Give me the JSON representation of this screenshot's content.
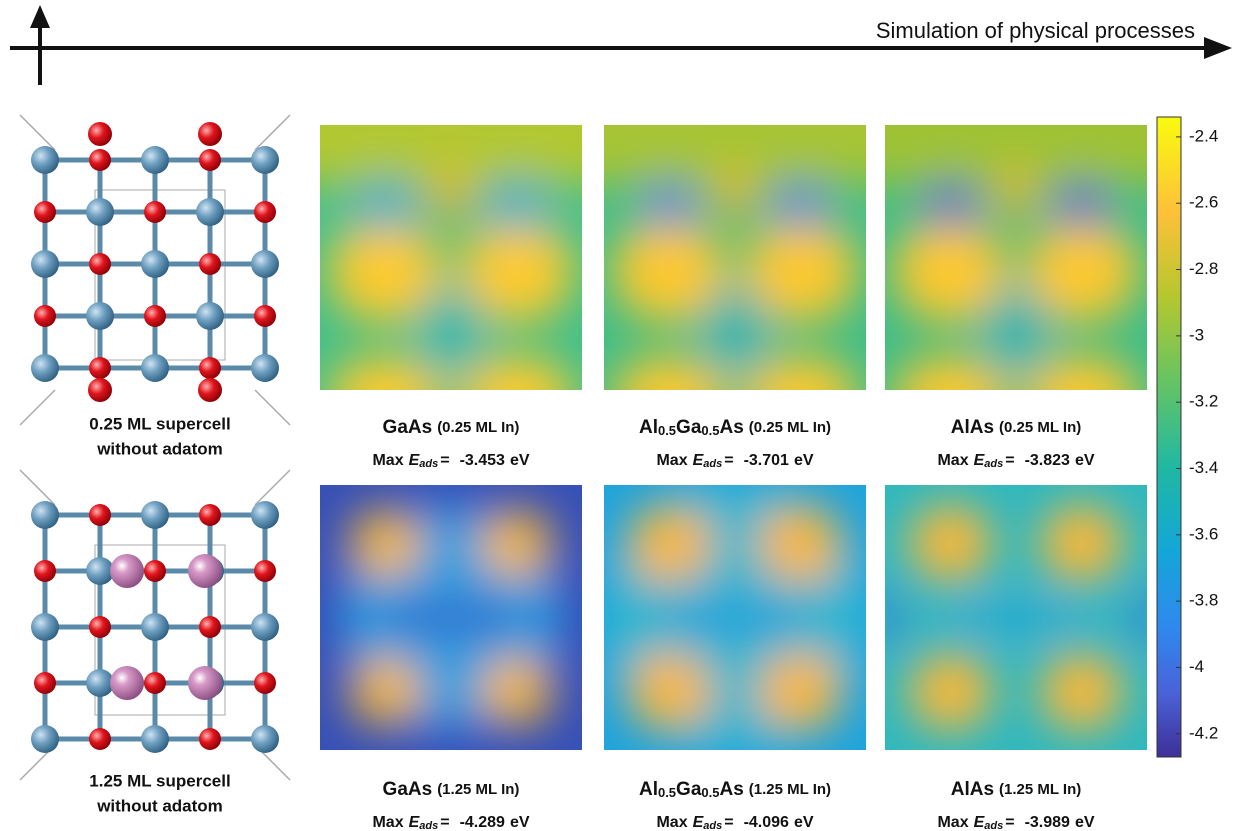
{
  "header": {
    "axis_label": "Simulation of physical processes"
  },
  "rows": [
    {
      "structure": {
        "line1": "0.25 ML supercell",
        "line2": "without adatom"
      },
      "panels": [
        {
          "material": [
            {
              "text": "GaAs"
            }
          ],
          "coverage": "(0.25 ML In)",
          "max": "Max",
          "symbol": "E",
          "subscript": "ads",
          "equals": "=",
          "value": -3.453,
          "unit": "eV"
        },
        {
          "material": [
            {
              "text": "Al"
            },
            {
              "text": "0.5",
              "sub": true
            },
            {
              "text": "Ga"
            },
            {
              "text": "0.5",
              "sub": true
            },
            {
              "text": "As"
            }
          ],
          "coverage": "(0.25 ML In)",
          "max": "Max",
          "symbol": "E",
          "subscript": "ads",
          "equals": "=",
          "value": -3.701,
          "unit": "eV"
        },
        {
          "material": [
            {
              "text": "AlAs"
            }
          ],
          "coverage": "(0.25 ML In)",
          "max": "Max",
          "symbol": "E",
          "subscript": "ads",
          "equals": "=",
          "value": -3.823,
          "unit": "eV"
        }
      ]
    },
    {
      "structure": {
        "line1": "1.25 ML supercell",
        "line2": "without adatom"
      },
      "panels": [
        {
          "material": [
            {
              "text": "GaAs"
            }
          ],
          "coverage": "(1.25 ML In)",
          "max": "Max",
          "symbol": "E",
          "subscript": "ads",
          "equals": "=",
          "value": -4.289,
          "unit": "eV"
        },
        {
          "material": [
            {
              "text": "Al"
            },
            {
              "text": "0.5",
              "sub": true
            },
            {
              "text": "Ga"
            },
            {
              "text": "0.5",
              "sub": true
            },
            {
              "text": "As"
            }
          ],
          "coverage": "(1.25 ML In)",
          "max": "Max",
          "symbol": "E",
          "subscript": "ads",
          "equals": "=",
          "value": -4.096,
          "unit": "eV"
        },
        {
          "material": [
            {
              "text": "AlAs"
            }
          ],
          "coverage": "(1.25 ML In)",
          "max": "Max",
          "symbol": "E",
          "subscript": "ads",
          "equals": "=",
          "value": -3.989,
          "unit": "eV"
        }
      ]
    }
  ],
  "colorbar": {
    "lim": [
      -4.27,
      -2.34
    ],
    "ticks": [
      -2.4,
      -2.6,
      -2.8,
      -3,
      -3.2,
      -3.4,
      -3.6,
      -3.8,
      -4,
      -4.2
    ]
  }
}
